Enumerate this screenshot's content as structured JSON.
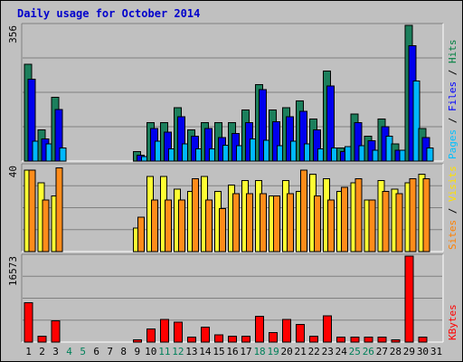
{
  "chart_data": {
    "type": "bar",
    "title": "Daily usage for October 2014",
    "days": [
      "1",
      "2",
      "3",
      "4",
      "5",
      "6",
      "7",
      "8",
      "9",
      "10",
      "11",
      "12",
      "13",
      "14",
      "15",
      "16",
      "17",
      "18",
      "19",
      "20",
      "21",
      "22",
      "23",
      "24",
      "25",
      "26",
      "27",
      "28",
      "29",
      "30",
      "31"
    ],
    "weekend_days": [
      "4",
      "5",
      "11",
      "12",
      "18",
      "19",
      "25",
      "26"
    ],
    "panels": [
      {
        "id": "hits",
        "max_label": "356",
        "max": 356,
        "gridlines": 3,
        "legend": [
          {
            "text": "Pages",
            "color": "#00c0ff"
          },
          {
            "text": "Files",
            "color": "#0000ff"
          },
          {
            "text": "Hits",
            "color": "#008040"
          }
        ],
        "series": [
          {
            "key": "hits",
            "color": "#1c7f5c",
            "values": [
              254,
              82,
              167,
              0,
              0,
              0,
              0,
              0,
              25,
              101,
              101,
              140,
              82,
              101,
              101,
              101,
              134,
              200,
              134,
              140,
              158,
              110,
              236,
              35,
              124,
              65,
              110,
              45,
              356,
              85,
              0
            ]
          },
          {
            "key": "files",
            "color": "#0000ee",
            "values": [
              215,
              58,
              135,
              0,
              0,
              0,
              0,
              0,
              15,
              85,
              76,
              116,
              65,
              85,
              62,
              72,
              101,
              187,
              103,
              116,
              130,
              82,
              197,
              25,
              101,
              53,
              90,
              28,
              303,
              62,
              0
            ]
          },
          {
            "key": "pages",
            "color": "#00b8ff",
            "values": [
              52,
              45,
              35,
              0,
              0,
              0,
              0,
              0,
              12,
              52,
              32,
              45,
              32,
              32,
              42,
              40,
              58,
              55,
              40,
              52,
              45,
              32,
              35,
              38,
              40,
              28,
              65,
              28,
              210,
              35,
              0
            ]
          }
        ]
      },
      {
        "id": "visits",
        "max_label": "40",
        "max": 40,
        "gridlines": 3,
        "legend": [
          {
            "text": "Sites",
            "color": "#ff8000"
          },
          {
            "text": "Visits",
            "color": "#ffe000"
          }
        ],
        "series": [
          {
            "key": "visits",
            "color": "#ffff33",
            "values": [
              38,
              32,
              26,
              0,
              0,
              0,
              0,
              0,
              11,
              35,
              35,
              29,
              28,
              35,
              28,
              31,
              33,
              33,
              26,
              33,
              28,
              36,
              34,
              28,
              32,
              24,
              33,
              29,
              32,
              36,
              0
            ]
          },
          {
            "key": "sites",
            "color": "#ff8c1a",
            "values": [
              38,
              24,
              39,
              0,
              0,
              0,
              0,
              0,
              16,
              24,
              24,
              24,
              34,
              24,
              20,
              27,
              27,
              27,
              26,
              27,
              38,
              26,
              24,
              30,
              34,
              24,
              28,
              27,
              34,
              34,
              0
            ]
          }
        ]
      },
      {
        "id": "kbytes",
        "max_label": "16573",
        "max": 16573,
        "gridlines": 3,
        "legend": [
          {
            "text": "KBytes",
            "color": "#ff0000"
          }
        ],
        "series": [
          {
            "key": "kbytes",
            "color": "#ff0000",
            "values": [
              7600,
              1150,
              4100,
              0,
              0,
              0,
              0,
              0,
              460,
              2500,
              4400,
              3800,
              920,
              2900,
              1400,
              1150,
              1150,
              5000,
              1800,
              4400,
              3400,
              1150,
              5100,
              920,
              920,
              920,
              920,
              460,
              16573,
              920,
              0
            ]
          }
        ]
      }
    ]
  }
}
